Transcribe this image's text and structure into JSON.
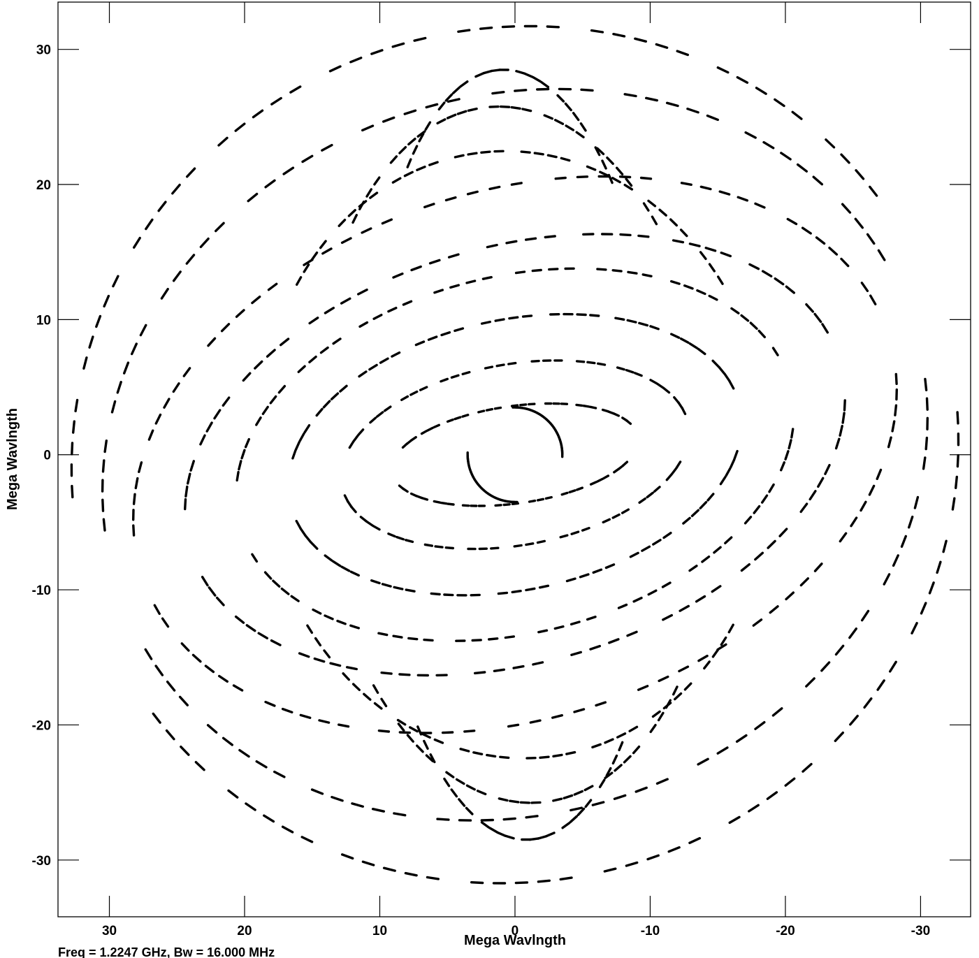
{
  "chart_data": {
    "type": "scatter",
    "title": "",
    "xlabel": "Mega Wavlngth",
    "ylabel": "Mega Wavlngth",
    "xlim": [
      33.8,
      -33.7
    ],
    "ylim": [
      -34.2,
      33.5
    ],
    "x_ticks": [
      30,
      20,
      10,
      0,
      -10,
      -20,
      -30
    ],
    "y_ticks": [
      30,
      20,
      10,
      0,
      -10,
      -20,
      -30
    ],
    "x_tick_labels": [
      "30",
      "20",
      "10",
      "0",
      "-10",
      "-20",
      "-30"
    ],
    "y_tick_labels": [
      "30",
      "20",
      "10",
      "0",
      "-10",
      "-20",
      "-30"
    ],
    "footer": "Freq = 1.2247 GHz, Bw = 16.000 MHz",
    "mark_color": "#000000",
    "symmetry": "each (u,v) sample also drawn at (-u,-v)",
    "tracks": [
      {
        "name": "track-a",
        "center": [
          0,
          0
        ],
        "radius_u": 3.5,
        "radius_v": 3.5,
        "phase_start": 90,
        "phase_end": 180,
        "tilt": 0,
        "segments": 28,
        "bar": 3,
        "gap": 0
      },
      {
        "name": "track-b",
        "center": [
          0,
          0
        ],
        "radius_u": 9.2,
        "radius_v": 3.6,
        "phase_start": 30,
        "phase_end": 160,
        "tilt": -8,
        "segments": 34,
        "bar": 4,
        "gap": 1
      },
      {
        "name": "track-c",
        "center": [
          0,
          0
        ],
        "radius_u": 13,
        "radius_v": 6.7,
        "phase_start": 25,
        "phase_end": 175,
        "tilt": -10,
        "segments": 40,
        "bar": 5,
        "gap": 1
      },
      {
        "name": "track-d",
        "center": [
          0,
          0
        ],
        "radius_u": 17,
        "radius_v": 10,
        "phase_start": 20,
        "phase_end": 170,
        "tilt": -12,
        "segments": 44,
        "bar": 6,
        "gap": 2
      },
      {
        "name": "track-e",
        "center": [
          0,
          0
        ],
        "radius_u": 21,
        "radius_v": 13.2,
        "phase_start": 15,
        "phase_end": 168,
        "tilt": -14,
        "segments": 46,
        "bar": 6,
        "gap": 2
      },
      {
        "name": "track-f",
        "center": [
          0,
          0
        ],
        "radius_u": 25,
        "radius_v": 15.4,
        "phase_start": 12,
        "phase_end": 170,
        "tilt": -16,
        "segments": 48,
        "bar": 7,
        "gap": 2
      },
      {
        "name": "track-g",
        "center": [
          0,
          0
        ],
        "radius_u": 29,
        "radius_v": 19.5,
        "phase_start": 10,
        "phase_end": 172,
        "tilt": -18,
        "segments": 50,
        "bar": 7,
        "gap": 3
      },
      {
        "name": "track-h",
        "center": [
          0,
          0
        ],
        "radius_u": 31,
        "radius_v": 26.5,
        "phase_start": 12,
        "phase_end": 170,
        "tilt": -20,
        "segments": 52,
        "bar": 8,
        "gap": 3
      },
      {
        "name": "track-i",
        "center": [
          0,
          0
        ],
        "radius_u": 33,
        "radius_v": 31.5,
        "phase_start": 18,
        "phase_end": 165,
        "tilt": -22,
        "segments": 52,
        "bar": 8,
        "gap": 3
      },
      {
        "name": "track-j",
        "center": [
          0,
          0
        ],
        "radius_u": 19,
        "radius_v": 22.5,
        "phase_start": 40,
        "phase_end": 150,
        "tilt": -6,
        "segments": 38,
        "bar": 6,
        "gap": 2
      },
      {
        "name": "track-k",
        "center": [
          0,
          0
        ],
        "radius_u": 15,
        "radius_v": 25.8,
        "phase_start": 45,
        "phase_end": 140,
        "tilt": -4,
        "segments": 32,
        "bar": 6,
        "gap": 2
      },
      {
        "name": "track-l",
        "center": [
          0,
          0
        ],
        "radius_u": 11,
        "radius_v": 28.5,
        "phase_start": 50,
        "phase_end": 135,
        "tilt": -2,
        "segments": 28,
        "bar": 6,
        "gap": 2
      }
    ]
  }
}
